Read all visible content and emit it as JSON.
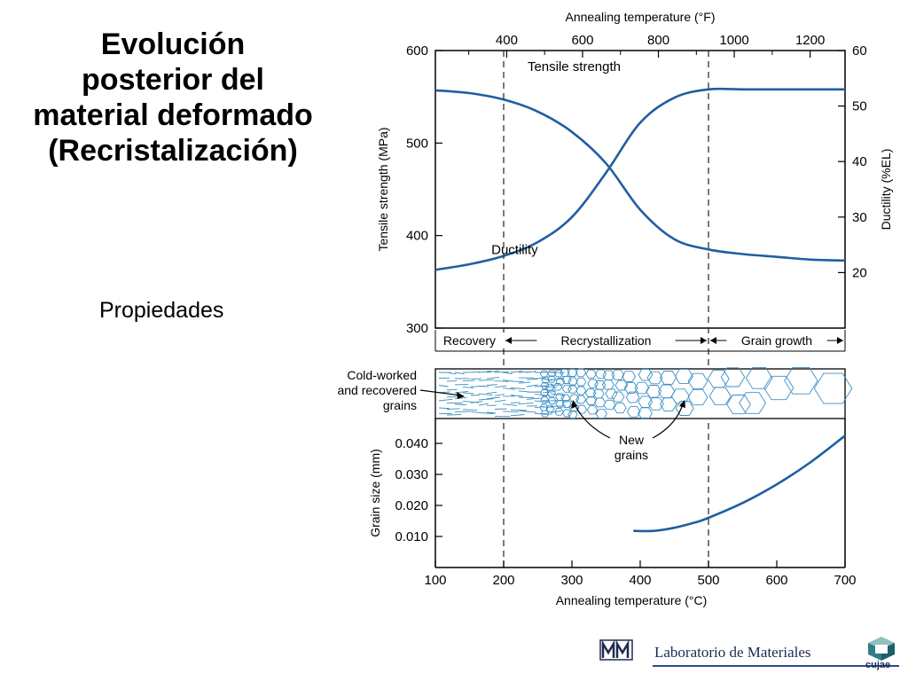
{
  "slide": {
    "title_lines": [
      "Evolución",
      "posterior del",
      "material deformado",
      "(Recristalización)"
    ],
    "subtitle": "Propiedades"
  },
  "footer": {
    "lab_label": "Laboratorio de Materiales",
    "logo_text": "cujae",
    "lab_logo_icon": "lab-monogram-icon",
    "cujae_logo_icon": "cube-logo-icon"
  },
  "colors": {
    "curve": "#1f5fa0",
    "micro": "#3c8fc4",
    "axis": "#000000"
  },
  "chart_data": [
    {
      "type": "line",
      "xlabel": "Annealing temperature (°C)",
      "x2label": "Annealing temperature (°F)",
      "ylabel": "Tensile strength (MPa)",
      "y2label": "Ductility (%EL)",
      "xlim": [
        100,
        700
      ],
      "ylim": [
        300,
        600
      ],
      "y2lim": [
        10,
        60
      ],
      "x2lim_F": [
        212,
        1292
      ],
      "xticks": [
        100,
        200,
        300,
        400,
        500,
        600,
        700
      ],
      "x2ticks": [
        400,
        600,
        800,
        1000,
        1200
      ],
      "yticks": [
        300,
        400,
        500,
        600
      ],
      "y2ticks": [
        20,
        30,
        40,
        50,
        60
      ],
      "regions": [
        {
          "label": "Recovery",
          "x0": 100,
          "x1": 200
        },
        {
          "label": "Recrystallization",
          "x0": 200,
          "x1": 500
        },
        {
          "label": "Grain growth",
          "x0": 500,
          "x1": 700
        }
      ],
      "boundaries": [
        200,
        500
      ],
      "series": [
        {
          "name": "Tensile strength",
          "axis": "left",
          "x": [
            100,
            150,
            200,
            250,
            300,
            350,
            400,
            450,
            500,
            550,
            600,
            650,
            700
          ],
          "y": [
            557,
            554,
            547,
            534,
            512,
            478,
            428,
            396,
            385,
            380,
            377,
            374,
            373
          ]
        },
        {
          "name": "Ductility",
          "axis": "right",
          "x": [
            100,
            150,
            200,
            250,
            300,
            350,
            400,
            450,
            500,
            550,
            600,
            650,
            700
          ],
          "y": [
            20.5,
            21.5,
            23,
            25.5,
            30,
            38,
            47,
            51.5,
            53,
            53,
            53,
            53,
            53
          ]
        }
      ]
    },
    {
      "type": "line",
      "xlabel": "Annealing temperature (°C)",
      "ylabel": "Grain size (mm)",
      "xlim": [
        100,
        700
      ],
      "ylim": [
        0.0,
        0.048
      ],
      "xticks": [
        100,
        200,
        300,
        400,
        500,
        600,
        700
      ],
      "xtick_labels": [
        "100",
        "200",
        "300",
        "400",
        "500",
        "600",
        "700"
      ],
      "yticks": [
        0.01,
        0.02,
        0.03,
        0.04
      ],
      "ytick_labels": [
        "0.010",
        "0.020",
        "0.030",
        "0.040"
      ],
      "annotations": [
        {
          "label_lines": [
            "Cold-worked",
            "and recovered",
            "grains"
          ]
        },
        {
          "label_lines": [
            "New",
            "grains"
          ]
        }
      ],
      "series": [
        {
          "name": "Grain size",
          "x": [
            390,
            420,
            450,
            480,
            500,
            550,
            600,
            650,
            700
          ],
          "y": [
            0.0118,
            0.0118,
            0.0128,
            0.0145,
            0.016,
            0.0208,
            0.0268,
            0.034,
            0.0425
          ]
        }
      ]
    }
  ]
}
